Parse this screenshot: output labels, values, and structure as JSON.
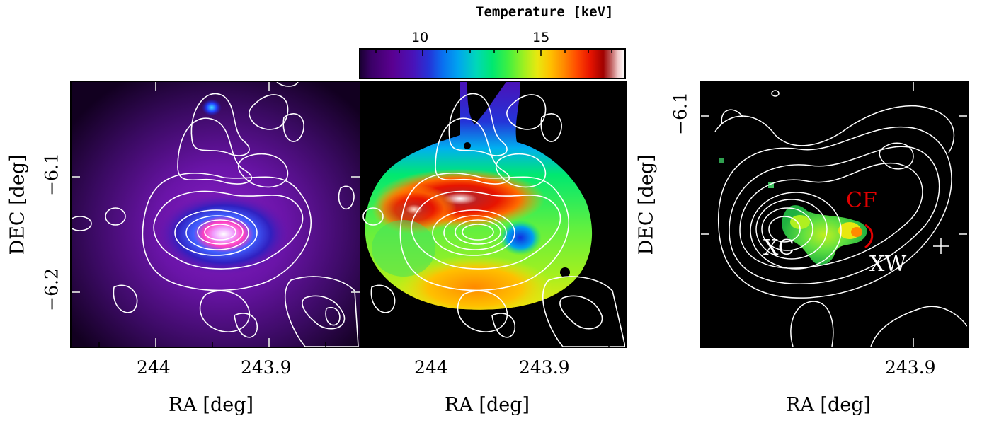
{
  "colorbar": {
    "title": "Temperature [keV]",
    "ticks": [
      "10",
      "15"
    ],
    "colors": [
      "#1a0033",
      "#5a0090",
      "#2434d8",
      "#00a4f0",
      "#00e870",
      "#e8e810",
      "#ff8a00",
      "#e81400",
      "#a00000",
      "#ffffff"
    ]
  },
  "axes": {
    "xlabel": "RA [deg]",
    "ylabel": "DEC [deg]",
    "x_ticks": [
      "244",
      "243.9"
    ],
    "y_ticks": [
      "−6.1",
      "−6.2"
    ]
  },
  "panel_right": {
    "x_tick": "243.9",
    "y_tick": "−6.1",
    "labels": {
      "cf": "CF",
      "xc": "XC",
      "xw": "XW"
    },
    "label_colors": {
      "cf": "#e00000",
      "xc": "#ffffff",
      "xw": "#ffffff"
    }
  }
}
